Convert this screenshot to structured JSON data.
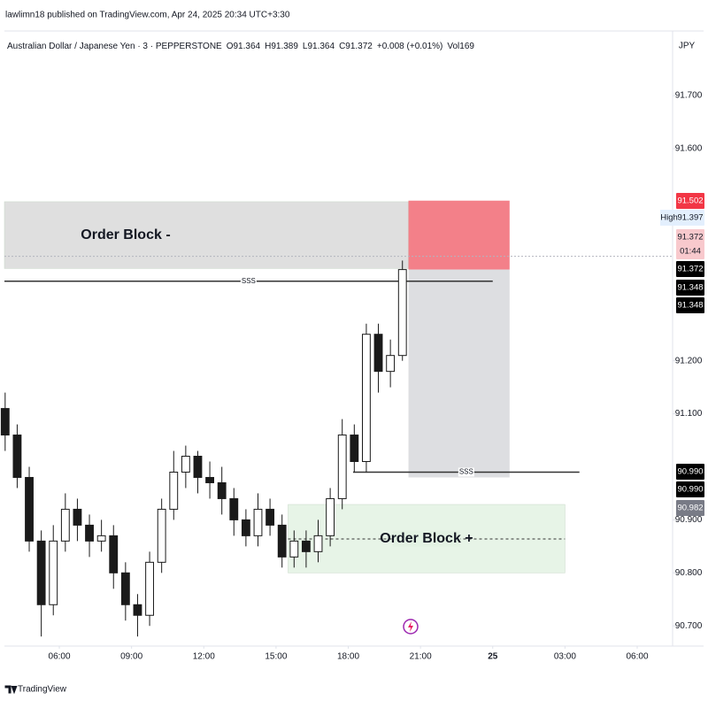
{
  "chart_data": {
    "type": "candlestick",
    "header": "lawlimn18 published on TradingView.com, Apr 24, 2025 20:34 UTC+3:30",
    "info": [
      "Australian Dollar / Japanese Yen · 3 · PEPPERSTONE",
      "O91.364",
      "H91.389",
      "L91.364",
      "C91.372",
      "+0.008 (+0.01%)",
      "Vol169"
    ],
    "currency": "JPY",
    "footer": "TradingView",
    "up_color": "#ffffff",
    "down_color": "#1a1a1a",
    "wick_color": "#1a1a1a",
    "x": [
      3.75,
      4.25,
      4.75,
      5.25,
      5.75,
      6.25,
      6.75,
      7.25,
      7.75,
      8.25,
      8.75,
      9.25,
      9.75,
      10.25,
      10.75,
      11.25,
      11.75,
      12.25,
      12.75,
      13.25,
      13.75,
      14.25,
      14.75,
      15.25,
      15.75,
      16.25,
      16.75,
      17.25,
      17.75,
      18.25,
      18.75,
      19.25,
      19.75,
      20.25
    ],
    "open": [
      91.11,
      91.06,
      90.98,
      90.86,
      90.74,
      90.86,
      90.92,
      90.89,
      90.86,
      90.87,
      90.8,
      90.74,
      90.72,
      90.82,
      90.92,
      90.99,
      91.02,
      90.98,
      90.97,
      90.94,
      90.9,
      90.87,
      90.92,
      90.89,
      90.83,
      90.86,
      90.84,
      90.87,
      90.94,
      91.06,
      91.01,
      91.25,
      91.18,
      91.21
    ],
    "high": [
      91.14,
      91.08,
      91.0,
      90.88,
      90.89,
      90.95,
      90.94,
      90.91,
      90.9,
      90.89,
      90.82,
      90.76,
      90.84,
      90.94,
      91.03,
      91.04,
      91.03,
      91.01,
      91.0,
      90.96,
      90.92,
      90.95,
      90.94,
      90.91,
      90.88,
      90.88,
      90.9,
      90.96,
      91.09,
      91.08,
      91.27,
      91.27,
      91.24,
      91.389
    ],
    "low": [
      91.03,
      90.96,
      90.84,
      90.68,
      90.72,
      90.84,
      90.86,
      90.83,
      90.84,
      90.77,
      90.71,
      90.68,
      90.7,
      90.8,
      90.9,
      90.96,
      90.95,
      90.94,
      90.91,
      90.87,
      90.85,
      90.85,
      90.87,
      90.81,
      90.81,
      90.81,
      90.82,
      90.85,
      90.92,
      90.99,
      90.99,
      91.14,
      91.15,
      91.2
    ],
    "close": [
      91.06,
      90.98,
      90.86,
      90.74,
      90.86,
      90.92,
      90.89,
      90.86,
      90.87,
      90.8,
      90.74,
      90.72,
      90.82,
      90.92,
      90.99,
      91.02,
      90.98,
      90.97,
      90.94,
      90.9,
      90.87,
      90.92,
      90.89,
      90.83,
      90.86,
      90.84,
      90.87,
      90.94,
      91.06,
      91.01,
      91.25,
      91.18,
      91.21,
      91.372
    ],
    "xlim": [
      3.72,
      31.47
    ],
    "xticks": [
      {
        "value": 6,
        "label": "06:00"
      },
      {
        "value": 9,
        "label": "09:00"
      },
      {
        "value": 12,
        "label": "12:00"
      },
      {
        "value": 15,
        "label": "15:00"
      },
      {
        "value": 18,
        "label": "18:00"
      },
      {
        "value": 21,
        "label": "21:00"
      },
      {
        "value": 24,
        "label": "25"
      },
      {
        "value": 27,
        "label": "03:00"
      },
      {
        "value": 30,
        "label": "06:00"
      }
    ],
    "ylim": [
      90.662,
      91.822
    ],
    "yticks": [
      {
        "value": 90.7,
        "label": "90.700"
      },
      {
        "value": 90.8,
        "label": "90.800"
      },
      {
        "value": 90.9,
        "label": "90.900"
      },
      {
        "value": 91.1,
        "label": "91.100"
      },
      {
        "value": 91.2,
        "label": "91.200"
      },
      {
        "value": 91.6,
        "label": "91.600"
      },
      {
        "value": 91.7,
        "label": "91.700"
      }
    ],
    "zones": [
      {
        "name": "Order Block -",
        "x": [
          3.72,
          20.5
        ],
        "y": [
          91.374,
          91.5
        ],
        "color": "#d9d9d9"
      },
      {
        "x": [
          20.5,
          24.7
        ],
        "y": [
          91.372,
          91.502
        ],
        "color": "#f0606c"
      },
      {
        "x": [
          20.5,
          24.7
        ],
        "y": [
          90.98,
          91.372
        ],
        "color": "#d5d6da"
      },
      {
        "name": "Order Block +",
        "x": [
          15.5,
          27.0
        ],
        "y": [
          90.8,
          90.929
        ],
        "color": "#e3f2e3"
      }
    ],
    "lines": [
      {
        "label": "SSS",
        "x": [
          3.72,
          24.0
        ],
        "y": 91.35,
        "style": "solid"
      },
      {
        "label": "SSS",
        "x": [
          18.2,
          27.6
        ],
        "y": 90.99,
        "style": "solid"
      },
      {
        "x": [
          15.5,
          27.0
        ],
        "y": 90.864,
        "style": "dashed"
      },
      {
        "x": [
          3.72,
          31.47
        ],
        "y": 91.397,
        "style": "dotted"
      }
    ],
    "price_tags": [
      {
        "value": 91.502,
        "label": "91.502",
        "bg": "#f23645",
        "fg": "#ffffff"
      },
      {
        "value": 91.397,
        "label": "91.397",
        "title": "High",
        "bg": "#e3effd",
        "fg": "#131722"
      },
      {
        "value": 91.372,
        "label": "91.372",
        "sub": "01:44",
        "bg": "#f8c9cd",
        "fg": "#131722"
      },
      {
        "value": 91.372,
        "label": "91.372",
        "bg": "#000000",
        "fg": "#ffffff"
      },
      {
        "value": 91.348,
        "label": "91.348",
        "bg": "#000000",
        "fg": "#ffffff"
      },
      {
        "value": 91.348,
        "label": "91.348",
        "bg": "#000000",
        "fg": "#ffffff"
      },
      {
        "value": 90.99,
        "label": "90.990",
        "bg": "#000000",
        "fg": "#ffffff"
      },
      {
        "value": 90.99,
        "label": "90.990",
        "bg": "#000000",
        "fg": "#ffffff"
      },
      {
        "value": 90.982,
        "label": "90.982",
        "bg": "#787b86",
        "fg": "#ffffff"
      }
    ]
  }
}
